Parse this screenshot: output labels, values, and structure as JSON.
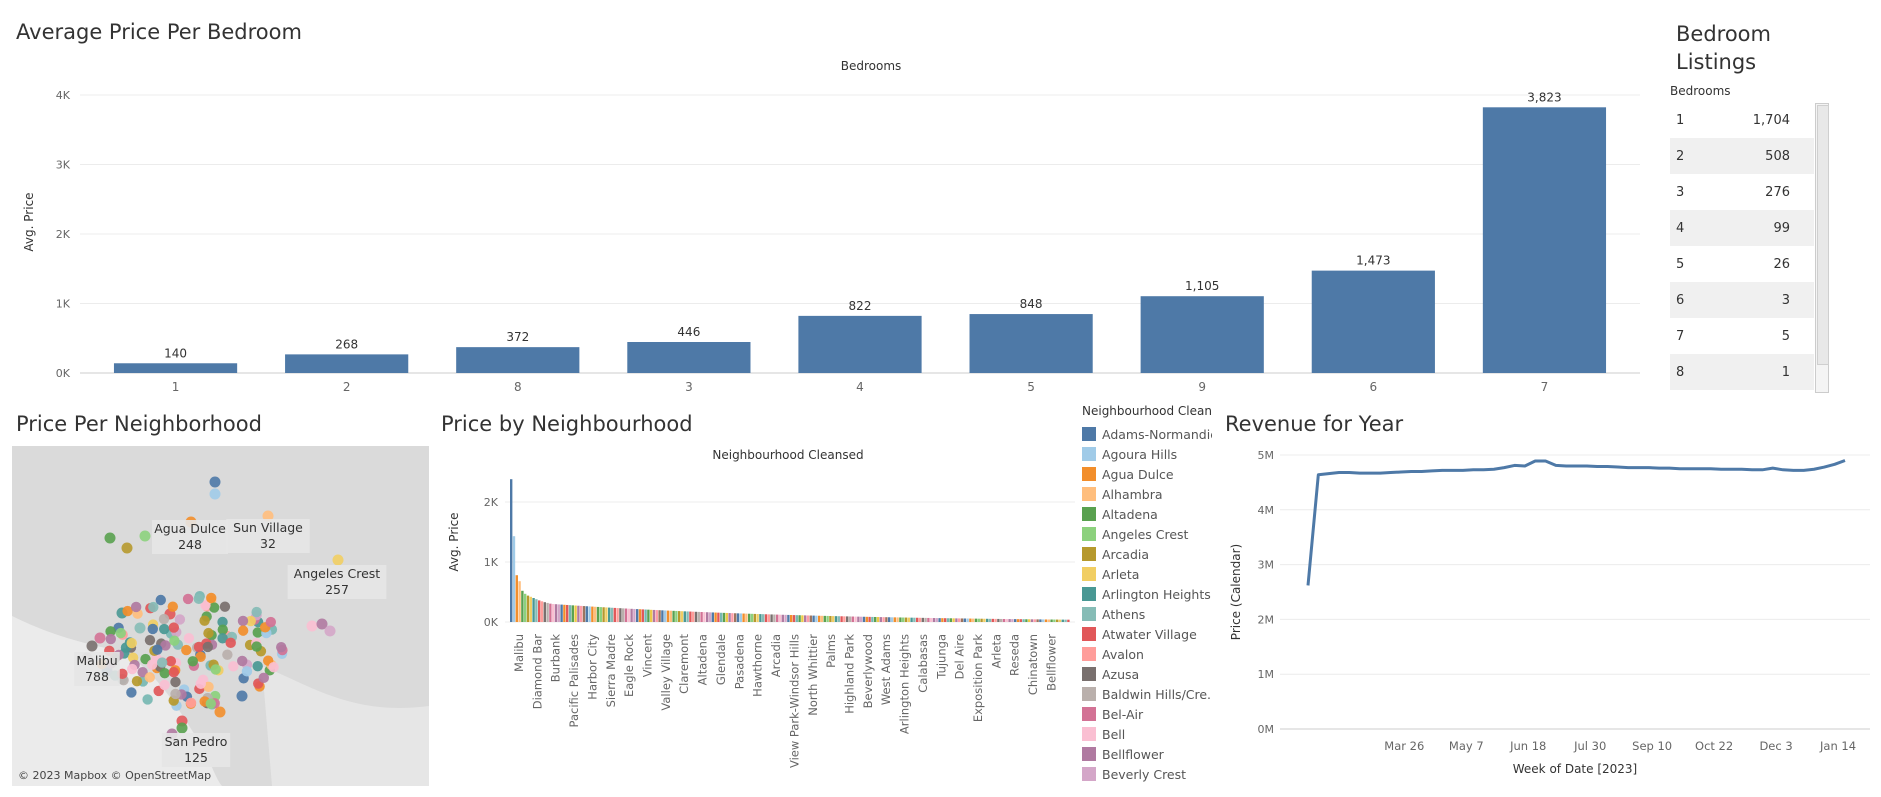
{
  "panels": {
    "avg_price": {
      "title": "Average Price Per Bedroom"
    },
    "bedroom_listings": {
      "title_line1": "Bedroom",
      "title_line2": "Listings",
      "header": "Bedrooms"
    },
    "map": {
      "title": "Price Per Neighborhood",
      "copyright": "© 2023 Mapbox © OpenStreetMap"
    },
    "price_by_neighbourhood": {
      "title": "Price by Neighbourhood",
      "legend_title": "Neighbourhood Clean.."
    },
    "revenue": {
      "title": "Revenue for Year"
    }
  },
  "listings": [
    {
      "bedrooms": "1",
      "count": "1,704"
    },
    {
      "bedrooms": "2",
      "count": "508"
    },
    {
      "bedrooms": "3",
      "count": "276"
    },
    {
      "bedrooms": "4",
      "count": "99"
    },
    {
      "bedrooms": "5",
      "count": "26"
    },
    {
      "bedrooms": "6",
      "count": "3"
    },
    {
      "bedrooms": "7",
      "count": "5"
    },
    {
      "bedrooms": "8",
      "count": "1"
    }
  ],
  "map_labels": [
    {
      "name": "Agua Dulce",
      "value": "248"
    },
    {
      "name": "Sun Village",
      "value": "32"
    },
    {
      "name": "Angeles Crest",
      "value": "257"
    },
    {
      "name": "Malibu",
      "value": "788"
    },
    {
      "name": "San Pedro",
      "value": "125"
    }
  ],
  "legend_items": [
    {
      "name": "Adams-Normandie",
      "color": "#4e79a7"
    },
    {
      "name": "Agoura Hills",
      "color": "#a0cbe8"
    },
    {
      "name": "Agua Dulce",
      "color": "#f28e2b"
    },
    {
      "name": "Alhambra",
      "color": "#ffbe7d"
    },
    {
      "name": "Altadena",
      "color": "#59a14f"
    },
    {
      "name": "Angeles Crest",
      "color": "#8cd17d"
    },
    {
      "name": "Arcadia",
      "color": "#b6992d"
    },
    {
      "name": "Arleta",
      "color": "#f1ce63"
    },
    {
      "name": "Arlington Heights",
      "color": "#499894"
    },
    {
      "name": "Athens",
      "color": "#86bcb6"
    },
    {
      "name": "Atwater Village",
      "color": "#e15759"
    },
    {
      "name": "Avalon",
      "color": "#ff9d9a"
    },
    {
      "name": "Azusa",
      "color": "#79706e"
    },
    {
      "name": "Baldwin Hills/Cre..",
      "color": "#bab0ac"
    },
    {
      "name": "Bel-Air",
      "color": "#d37295"
    },
    {
      "name": "Bell",
      "color": "#fabfd2"
    },
    {
      "name": "Bellflower",
      "color": "#b07aa1"
    },
    {
      "name": "Beverly Crest",
      "color": "#d4a6c8"
    }
  ],
  "chart_data": [
    {
      "type": "bar",
      "title": "Average Price Per Bedroom",
      "header": "Bedrooms",
      "ylabel": "Avg. Price",
      "categories": [
        "1",
        "2",
        "8",
        "3",
        "4",
        "5",
        "9",
        "6",
        "7"
      ],
      "values": [
        140,
        268,
        372,
        446,
        822,
        848,
        1105,
        1473,
        3823
      ],
      "value_labels": [
        "140",
        "268",
        "372",
        "446",
        "822",
        "848",
        "1,105",
        "1,473",
        "3,823"
      ],
      "ylim": [
        0,
        4000
      ],
      "yticks": [
        "0K",
        "1K",
        "2K",
        "3K",
        "4K"
      ],
      "color": "#4e79a7",
      "grid": true
    },
    {
      "type": "bar",
      "title": "Price by Neighbourhood",
      "header": "Neighbourhood Cleansed",
      "ylabel": "Avg. Price",
      "ylim": [
        0,
        2500
      ],
      "yticks": [
        "0K",
        "1K",
        "2K"
      ],
      "tick_labels": [
        "Malibu",
        "Diamond Bar",
        "Burbank",
        "Pacific Palisades",
        "Harbor City",
        "Sierra Madre",
        "Eagle Rock",
        "Vincent",
        "Valley Village",
        "Claremont",
        "Altadena",
        "Glendale",
        "Pasadena",
        "Hawthorne",
        "Arcadia",
        "View Park-Windsor Hills",
        "North Whittier",
        "Palms",
        "Highland Park",
        "Beverlywood",
        "West Adams",
        "Arlington Heights",
        "Calabasas",
        "Tujunga",
        "Del Aire",
        "Exposition Park",
        "Arleta",
        "Reseda",
        "Chinatown",
        "Bellflower"
      ],
      "top_values": [
        2380,
        1430,
        780,
        680,
        520,
        470,
        440,
        420,
        400,
        380,
        360,
        345,
        330,
        318,
        306
      ],
      "bar_count": 200,
      "grid": true
    },
    {
      "type": "line",
      "title": "Revenue for Year",
      "xlabel": "Week of Date [2023]",
      "ylabel": "Price (Calendar)",
      "x_ticks": [
        "Mar 26",
        "May 7",
        "Jun 18",
        "Jul 30",
        "Sep 10",
        "Oct 22",
        "Dec 3",
        "Jan 14"
      ],
      "yticks": [
        "0M",
        "1M",
        "2M",
        "3M",
        "4M",
        "5M"
      ],
      "ylim": [
        0,
        5000000
      ],
      "x_weeks": [
        0,
        1,
        2,
        3,
        4,
        5,
        6,
        7,
        8,
        9,
        10,
        11,
        12,
        13,
        14,
        15,
        16,
        17,
        18,
        19,
        20,
        21,
        22,
        23,
        24,
        25,
        26,
        27,
        28,
        29,
        30,
        31,
        32,
        33,
        34,
        35,
        36,
        37,
        38,
        39,
        40,
        41,
        42,
        43,
        44,
        45,
        46,
        47,
        48,
        49,
        50,
        51,
        52
      ],
      "values": [
        2620000,
        4640000,
        4660000,
        4680000,
        4680000,
        4670000,
        4670000,
        4670000,
        4680000,
        4690000,
        4700000,
        4700000,
        4710000,
        4720000,
        4720000,
        4720000,
        4730000,
        4730000,
        4740000,
        4770000,
        4810000,
        4800000,
        4890000,
        4890000,
        4810000,
        4800000,
        4800000,
        4800000,
        4790000,
        4790000,
        4780000,
        4770000,
        4770000,
        4770000,
        4760000,
        4760000,
        4750000,
        4750000,
        4750000,
        4750000,
        4740000,
        4740000,
        4740000,
        4730000,
        4730000,
        4760000,
        4730000,
        4720000,
        4720000,
        4740000,
        4780000,
        4830000,
        4900000
      ],
      "color": "#4e79a7",
      "grid": true
    }
  ]
}
